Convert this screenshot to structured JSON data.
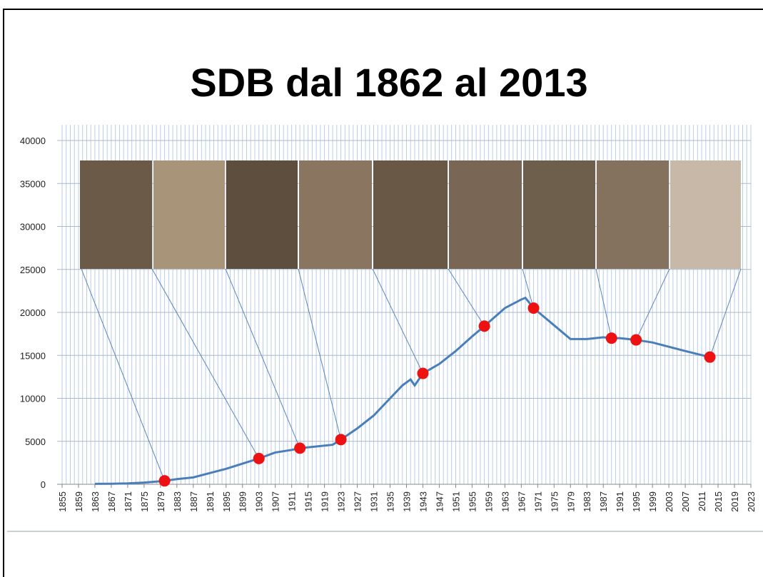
{
  "chart_data": {
    "type": "line",
    "title": "SDB dal 1862 al 2013",
    "xlim": [
      1855,
      2023
    ],
    "xticks": [
      1855,
      1859,
      1863,
      1867,
      1871,
      1875,
      1879,
      1883,
      1887,
      1891,
      1895,
      1899,
      1903,
      1907,
      1911,
      1915,
      1919,
      1923,
      1927,
      1931,
      1935,
      1939,
      1943,
      1947,
      1951,
      1955,
      1959,
      1963,
      1967,
      1971,
      1975,
      1979,
      1983,
      1987,
      1991,
      1995,
      1999,
      2003,
      2007,
      2011,
      2015,
      2019,
      2023
    ],
    "ylim": [
      0,
      40000
    ],
    "yticks": [
      0,
      5000,
      10000,
      15000,
      20000,
      25000,
      30000,
      35000,
      40000
    ],
    "grid": true,
    "line": {
      "color": "#4a7ebb",
      "x": [
        1863,
        1867,
        1871,
        1875,
        1879,
        1880,
        1883,
        1887,
        1891,
        1895,
        1899,
        1903,
        1907,
        1911,
        1913,
        1917,
        1921,
        1923,
        1927,
        1931,
        1935,
        1938,
        1940,
        1941,
        1943,
        1947,
        1951,
        1955,
        1958,
        1963,
        1967,
        1968,
        1970,
        1975,
        1979,
        1983,
        1987,
        1989,
        1991,
        1995,
        1999,
        2003,
        2007,
        2013
      ],
      "values": [
        50,
        60,
        100,
        200,
        350,
        400,
        600,
        800,
        1300,
        1800,
        2400,
        3000,
        3700,
        4000,
        4200,
        4400,
        4600,
        5200,
        6500,
        8000,
        10000,
        11500,
        12200,
        11500,
        12900,
        14000,
        15500,
        17200,
        18400,
        20500,
        21500,
        21700,
        20500,
        18500,
        16900,
        16900,
        17100,
        17000,
        17000,
        16800,
        16500,
        16000,
        15500,
        14800
      ]
    },
    "points": {
      "color": "#ee1111",
      "x": [
        1880,
        1903,
        1913,
        1923,
        1943,
        1958,
        1970,
        1989,
        1995,
        2013
      ],
      "values": [
        400,
        3000,
        4200,
        5200,
        12900,
        18400,
        20500,
        17000,
        16800,
        14800
      ]
    }
  }
}
